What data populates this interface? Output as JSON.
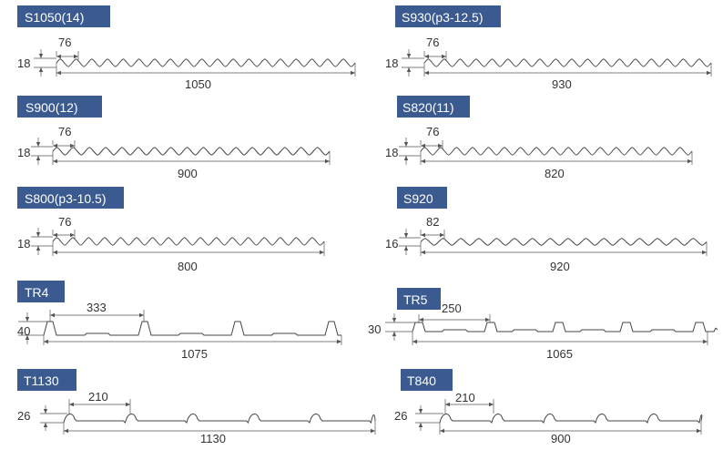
{
  "colors": {
    "title_background": "#3b5a8f",
    "title_text": "#ffffff",
    "line": "#444444"
  },
  "profiles": [
    {
      "title": "S1050(14)",
      "kind": "wave",
      "pitch": "76",
      "height": "18",
      "width": "1050"
    },
    {
      "title": "S930(p3-12.5)",
      "kind": "wave",
      "pitch": "76",
      "height": "18",
      "width": "930"
    },
    {
      "title": "S900(12)",
      "kind": "wave",
      "pitch": "76",
      "height": "18",
      "width": "900"
    },
    {
      "title": "S820(11)",
      "kind": "wave",
      "pitch": "76",
      "height": "18",
      "width": "820"
    },
    {
      "title": "S800(p3-10.5)",
      "kind": "wave",
      "pitch": "76",
      "height": "18",
      "width": "800"
    },
    {
      "title": "S920",
      "kind": "wave",
      "pitch": "82",
      "height": "16",
      "width": "920"
    },
    {
      "title": "TR4",
      "kind": "trapezoid",
      "pitch": "333",
      "height": "40",
      "width": "1075"
    },
    {
      "title": "TR5",
      "kind": "trapezoid",
      "pitch": "250",
      "height": "30",
      "width": "1065"
    },
    {
      "title": "T1130",
      "kind": "tile",
      "pitch": "210",
      "height": "26",
      "width": "1130"
    },
    {
      "title": "T840",
      "kind": "tile",
      "pitch": "210",
      "height": "26",
      "width": "900"
    }
  ]
}
